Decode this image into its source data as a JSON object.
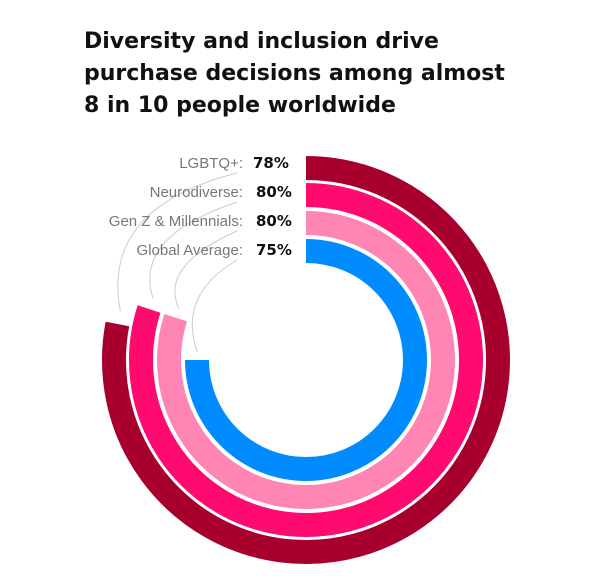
{
  "title_lines": [
    "Diversity and inclusion drive",
    "purchase decisions among almost",
    "8 in 10 people worldwide"
  ],
  "chart_data": {
    "type": "radial-bar",
    "title": "Diversity and inclusion drive purchase decisions among almost 8 in 10 people worldwide",
    "max": 100,
    "series": [
      {
        "name": "LGBTQ+",
        "label": "LGBTQ+:",
        "value": 78,
        "value_label": "78%",
        "color": "#a8002e"
      },
      {
        "name": "Neurodiverse",
        "label": "Neurodiverse:",
        "value": 80,
        "value_label": "80%",
        "color": "#ff0a6e"
      },
      {
        "name": "Gen Z & Millennials",
        "label": "Gen Z & Millennials:",
        "value": 80,
        "value_label": "80%",
        "color": "#ff85b5"
      },
      {
        "name": "Global Average",
        "label": "Global Average:",
        "value": 75,
        "value_label": "75%",
        "color": "#008cff"
      }
    ]
  }
}
